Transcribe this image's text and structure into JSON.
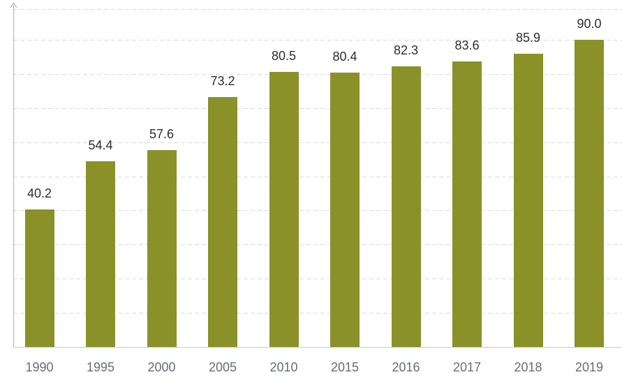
{
  "chart_data": {
    "type": "bar",
    "title": "",
    "xlabel": "",
    "ylabel": "",
    "categories": [
      "1990",
      "1995",
      "2000",
      "2005",
      "2010",
      "2015",
      "2016",
      "2017",
      "2018",
      "2019"
    ],
    "values": [
      40.2,
      54.4,
      57.6,
      73.2,
      80.5,
      80.4,
      82.3,
      83.6,
      85.9,
      90.0
    ],
    "value_labels": [
      "40.2",
      "54.4",
      "57.6",
      "73.2",
      "80.5",
      "80.4",
      "82.3",
      "83.6",
      "85.9",
      "90.0"
    ],
    "ylim": [
      0,
      99
    ],
    "gridline_interval": 10,
    "grid": "dashed-horizontal",
    "legend": "none",
    "colors": {
      "bar": "#8A9129",
      "gridline": "#D9DADF",
      "axis_line": "#B6B8C0",
      "baseline": "#C9CBD2",
      "value_label": "#2D2D2D",
      "category_label": "#656C7A"
    }
  }
}
